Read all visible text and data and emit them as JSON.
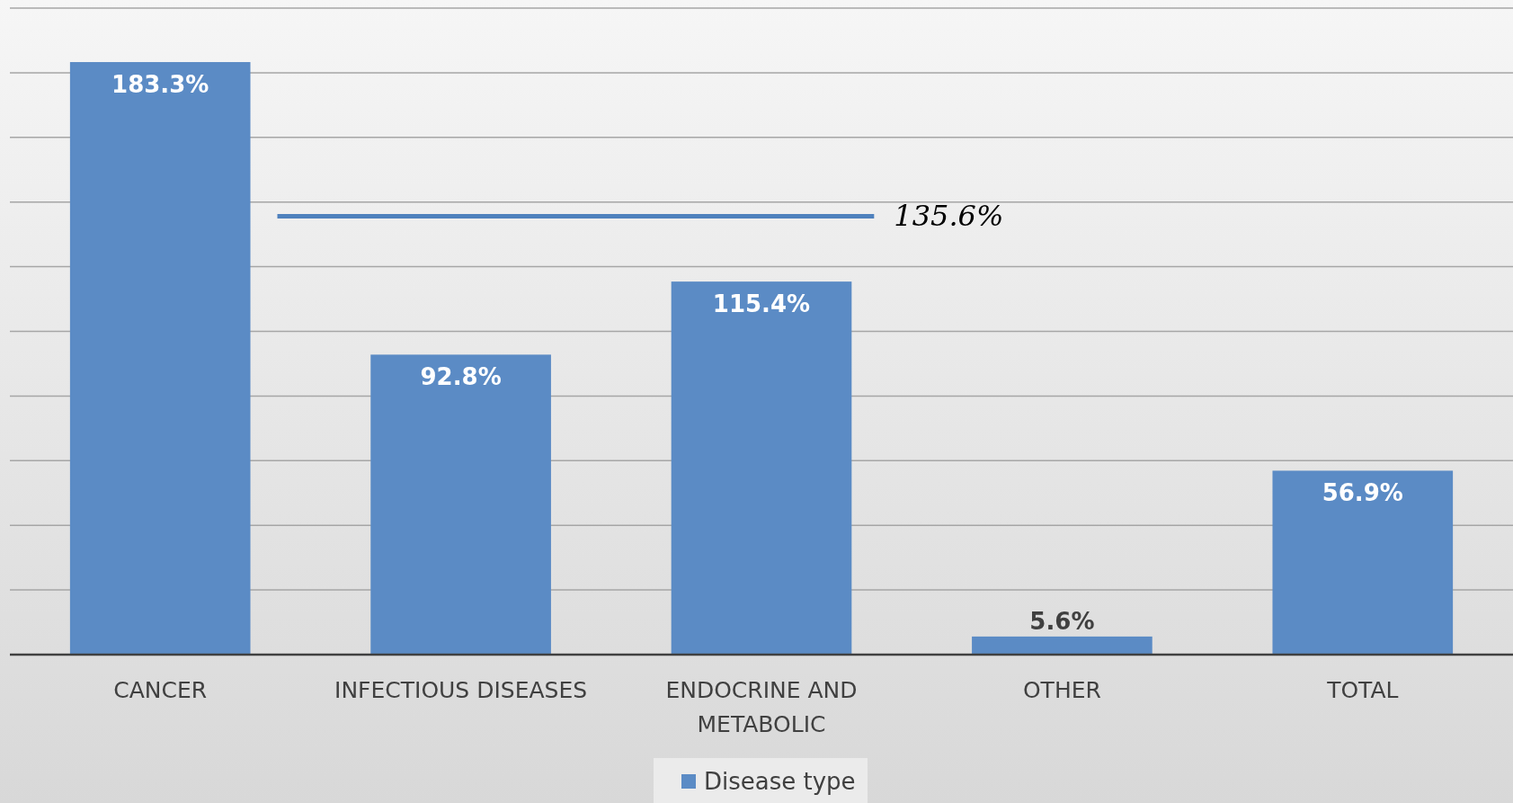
{
  "chart_data": {
    "type": "bar",
    "categories": [
      "CANCER",
      "INFECTIOUS DISEASES",
      "ENDOCRINE AND METABOLIC",
      "OTHER",
      "TOTAL"
    ],
    "series": [
      {
        "name": "Disease type",
        "color": "#5b8bc5",
        "values": [
          183.3,
          92.8,
          115.4,
          5.6,
          56.9
        ],
        "value_labels": [
          "183.3%",
          "92.8%",
          "115.4%",
          "5.6%",
          "56.9%"
        ]
      }
    ],
    "ylim": [
      0,
      200
    ],
    "yticks": [
      {
        "value": 0,
        "label": null
      },
      {
        "value": 20,
        "label": null
      },
      {
        "value": 40,
        "label": null
      },
      {
        "value": 60,
        "label": null
      },
      {
        "value": 80,
        "label": null
      },
      {
        "value": 100,
        "label": null
      },
      {
        "value": 120,
        "label": null
      },
      {
        "value": 140,
        "label": null
      },
      {
        "value": 160,
        "label": null
      },
      {
        "value": 180,
        "label": null
      },
      {
        "value": 200,
        "label": null
      }
    ],
    "tick_labels": "x",
    "grid": "y",
    "legend": "bottom",
    "ref_lines": [
      {
        "axis": "y",
        "value": 135.6,
        "label": "135.6%",
        "color": "#4f81bd"
      }
    ]
  }
}
